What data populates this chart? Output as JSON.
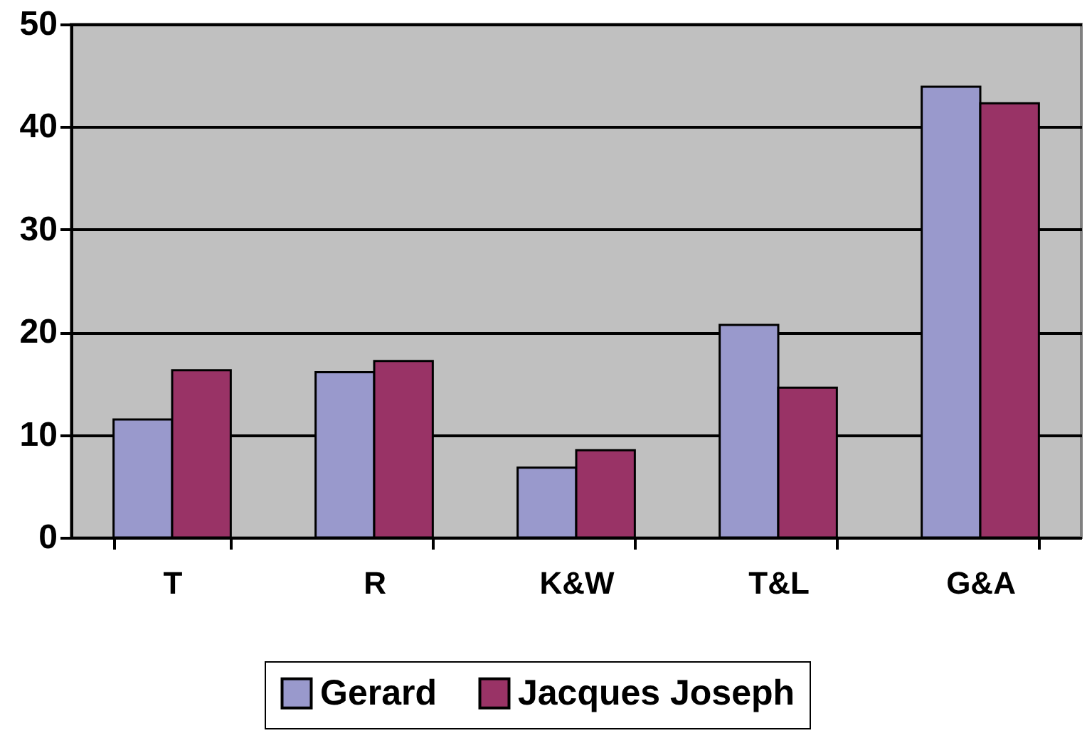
{
  "chart_data": {
    "type": "bar",
    "categories": [
      "T",
      "R",
      "K&W",
      "T&L",
      "G&A"
    ],
    "series": [
      {
        "name": "Gerard",
        "color": "#9999cc",
        "values": [
          11.5,
          16.1,
          6.8,
          20.7,
          43.9
        ]
      },
      {
        "name": "Jacques Joseph",
        "color": "#993366",
        "values": [
          16.3,
          17.2,
          8.5,
          14.6,
          42.3
        ]
      }
    ],
    "ylim": [
      0,
      50
    ],
    "yticks": [
      0,
      10,
      20,
      30,
      40,
      50
    ],
    "grid": "y",
    "legend": "bottom"
  }
}
